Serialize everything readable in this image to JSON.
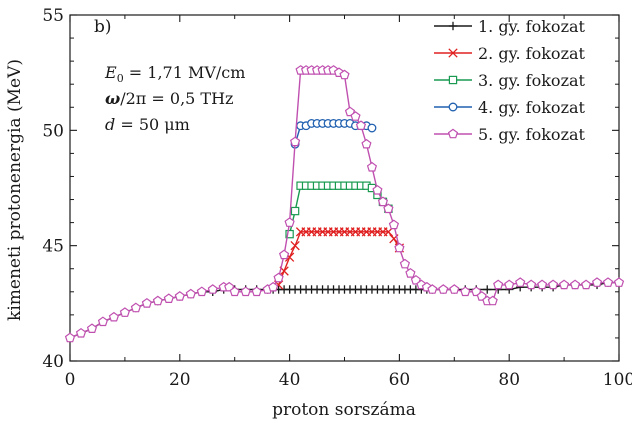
{
  "chart_data": {
    "type": "line",
    "panel_label": "b)",
    "xlabel": "proton sorszáma",
    "ylabel": "kimeneti protonenergia (MeV)",
    "xlim": [
      0,
      100
    ],
    "ylim": [
      40,
      55
    ],
    "x_ticks": [
      0,
      20,
      40,
      60,
      80,
      100
    ],
    "y_ticks": [
      40,
      45,
      50,
      55
    ],
    "x_tick_labels": [
      "0",
      "20",
      "40",
      "60",
      "80",
      "100"
    ],
    "y_tick_labels": [
      "40",
      "45",
      "50",
      "55"
    ],
    "grid": false,
    "legend_position": "top-right",
    "annotations": [
      {
        "label": "E",
        "sub": "0",
        "value": " = 1,71 MV/cm"
      },
      {
        "label": "ω",
        "sub": "",
        "value": "/2π = 0,5 THz"
      },
      {
        "label": "d",
        "sub": "",
        "value": " = 50 μm"
      }
    ],
    "series": [
      {
        "name": "1. gy. fokozat",
        "color": "#1a1a1a",
        "marker": "plus",
        "x": [
          0,
          2,
          4,
          6,
          8,
          10,
          12,
          14,
          16,
          18,
          20,
          22,
          24,
          26,
          28,
          30,
          32,
          34,
          36,
          37,
          38,
          39,
          40,
          41,
          42,
          43,
          44,
          45,
          46,
          47,
          48,
          49,
          50,
          51,
          52,
          53,
          54,
          55,
          56,
          57,
          58,
          59,
          60,
          61,
          62,
          63,
          64,
          65,
          66,
          68,
          70,
          72,
          74,
          76,
          78,
          80,
          82,
          84,
          86,
          88,
          90,
          92,
          94,
          96,
          98,
          100
        ],
        "y": [
          41.0,
          41.2,
          41.4,
          41.7,
          41.9,
          42.1,
          42.3,
          42.5,
          42.6,
          42.7,
          42.8,
          42.9,
          43.0,
          43.0,
          43.1,
          43.1,
          43.1,
          43.1,
          43.1,
          43.1,
          43.1,
          43.1,
          43.1,
          43.1,
          43.1,
          43.1,
          43.1,
          43.1,
          43.1,
          43.1,
          43.1,
          43.1,
          43.1,
          43.1,
          43.1,
          43.1,
          43.1,
          43.1,
          43.1,
          43.1,
          43.1,
          43.1,
          43.1,
          43.1,
          43.1,
          43.1,
          43.1,
          43.1,
          43.1,
          43.1,
          43.1,
          43.1,
          43.1,
          43.1,
          43.1,
          43.1,
          43.2,
          43.2,
          43.2,
          43.2,
          43.3,
          43.3,
          43.3,
          43.3,
          43.4,
          43.4
        ]
      },
      {
        "name": "2. gy. fokozat",
        "color": "#e02020",
        "marker": "cross",
        "x": [
          38,
          39,
          40,
          41,
          42,
          43,
          44,
          45,
          46,
          47,
          48,
          49,
          50,
          51,
          52,
          53,
          54,
          55,
          56,
          57,
          58,
          59,
          60
        ],
        "y": [
          43.3,
          43.9,
          44.5,
          45.0,
          45.6,
          45.6,
          45.6,
          45.6,
          45.6,
          45.6,
          45.6,
          45.6,
          45.6,
          45.6,
          45.6,
          45.6,
          45.6,
          45.6,
          45.6,
          45.6,
          45.6,
          45.3,
          44.9
        ]
      },
      {
        "name": "3. gy. fokozat",
        "color": "#1a9a50",
        "marker": "square",
        "x": [
          40,
          41,
          42,
          43,
          44,
          45,
          46,
          47,
          48,
          49,
          50,
          51,
          52,
          53,
          54,
          55,
          56,
          57,
          58
        ],
        "y": [
          45.5,
          46.5,
          47.6,
          47.6,
          47.6,
          47.6,
          47.6,
          47.6,
          47.6,
          47.6,
          47.6,
          47.6,
          47.6,
          47.6,
          47.6,
          47.5,
          47.2,
          46.9,
          46.6
        ]
      },
      {
        "name": "4. gy. fokozat",
        "color": "#2060b0",
        "marker": "circle",
        "x": [
          41,
          42,
          43,
          44,
          45,
          46,
          47,
          48,
          49,
          50,
          51,
          52,
          53,
          54,
          55
        ],
        "y": [
          49.4,
          50.2,
          50.2,
          50.3,
          50.3,
          50.3,
          50.3,
          50.3,
          50.3,
          50.3,
          50.3,
          50.2,
          50.2,
          50.2,
          50.1
        ]
      },
      {
        "name": "5. gy. fokozat",
        "color": "#c050b0",
        "marker": "pentagon",
        "x": [
          0,
          2,
          4,
          6,
          8,
          10,
          12,
          14,
          16,
          18,
          20,
          22,
          24,
          26,
          28,
          29,
          30,
          32,
          34,
          36,
          37,
          38,
          39,
          40,
          41,
          42,
          43,
          44,
          45,
          46,
          47,
          48,
          49,
          50,
          51,
          52,
          53,
          54,
          55,
          56,
          57,
          58,
          59,
          60,
          61,
          62,
          63,
          64,
          65,
          66,
          68,
          70,
          72,
          74,
          75,
          76,
          77,
          78,
          80,
          82,
          84,
          86,
          88,
          90,
          92,
          94,
          96,
          98,
          100
        ],
        "y": [
          41.0,
          41.2,
          41.4,
          41.7,
          41.9,
          42.1,
          42.3,
          42.5,
          42.6,
          42.7,
          42.8,
          42.9,
          43.0,
          43.1,
          43.2,
          43.2,
          43.0,
          43.0,
          43.0,
          43.1,
          43.2,
          43.6,
          44.6,
          46.0,
          49.5,
          52.6,
          52.6,
          52.6,
          52.6,
          52.6,
          52.6,
          52.6,
          52.5,
          52.4,
          50.8,
          50.6,
          50.2,
          49.4,
          48.4,
          47.4,
          46.9,
          46.6,
          45.9,
          44.9,
          44.2,
          43.8,
          43.5,
          43.3,
          43.2,
          43.1,
          43.1,
          43.1,
          43.0,
          43.0,
          42.8,
          42.6,
          42.6,
          43.3,
          43.3,
          43.4,
          43.3,
          43.3,
          43.3,
          43.3,
          43.3,
          43.3,
          43.4,
          43.4,
          43.4
        ]
      }
    ]
  }
}
